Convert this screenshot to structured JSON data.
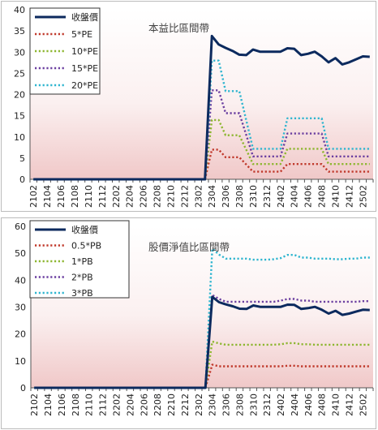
{
  "charts": [
    {
      "type": "line",
      "title": "本益比區間帶",
      "ylim": [
        0,
        40
      ],
      "yticks": [
        0,
        5,
        10,
        15,
        20,
        25,
        30,
        35,
        40
      ],
      "xticklabels": [
        "2102",
        "2104",
        "2106",
        "2108",
        "2110",
        "2112",
        "2202",
        "2204",
        "2206",
        "2208",
        "2210",
        "2212",
        "2302",
        "2304",
        "2306",
        "2308",
        "2310",
        "2312",
        "2402",
        "2404",
        "2406",
        "2408",
        "2410",
        "2412",
        "2502"
      ],
      "n_points": 50,
      "background": {
        "top": "#ffffff",
        "bottom": "#f0c8c8"
      },
      "series": [
        {
          "name": "收盤價",
          "color": "#0c2a5e",
          "style": "solid",
          "width": 3,
          "values": [
            0,
            0,
            0,
            0,
            0,
            0,
            0,
            0,
            0,
            0,
            0,
            0,
            0,
            0,
            0,
            0,
            0,
            0,
            0,
            0,
            0,
            0,
            0,
            0,
            0,
            0,
            33.8,
            31.8,
            31,
            30.3,
            29.4,
            29.3,
            30.6,
            30.1,
            30.1,
            30.1,
            30.1,
            30.9,
            30.8,
            29.3,
            29.6,
            30.1,
            29,
            27.6,
            28.6,
            27.1,
            27.6,
            28.3,
            29,
            28.9
          ]
        },
        {
          "name": "5*PE",
          "color": "#c0392b",
          "style": "dotted",
          "width": 2.4,
          "values": [
            0,
            0,
            0,
            0,
            0,
            0,
            0,
            0,
            0,
            0,
            0,
            0,
            0,
            0,
            0,
            0,
            0,
            0,
            0,
            0,
            0,
            0,
            0,
            0,
            0,
            0,
            7,
            7,
            5.2,
            5.2,
            5.2,
            3.5,
            1.8,
            1.8,
            1.8,
            1.8,
            1.8,
            3.6,
            3.6,
            3.6,
            3.6,
            3.6,
            3.6,
            1.8,
            1.8,
            1.8,
            1.8,
            1.8,
            1.8,
            1.8
          ]
        },
        {
          "name": "10*PE",
          "color": "#8db630",
          "style": "dotted",
          "width": 2.4,
          "values": [
            0,
            0,
            0,
            0,
            0,
            0,
            0,
            0,
            0,
            0,
            0,
            0,
            0,
            0,
            0,
            0,
            0,
            0,
            0,
            0,
            0,
            0,
            0,
            0,
            0,
            0,
            14,
            14,
            10.4,
            10.4,
            10.4,
            7,
            3.6,
            3.6,
            3.6,
            3.6,
            3.6,
            7.2,
            7.2,
            7.2,
            7.2,
            7.2,
            7.2,
            3.6,
            3.6,
            3.6,
            3.6,
            3.6,
            3.6,
            3.6
          ]
        },
        {
          "name": "15*PE",
          "color": "#6b3fa0",
          "style": "dotted",
          "width": 2.4,
          "values": [
            0,
            0,
            0,
            0,
            0,
            0,
            0,
            0,
            0,
            0,
            0,
            0,
            0,
            0,
            0,
            0,
            0,
            0,
            0,
            0,
            0,
            0,
            0,
            0,
            0,
            0,
            21,
            21,
            15.6,
            15.6,
            15.6,
            10.5,
            5.4,
            5.4,
            5.4,
            5.4,
            5.4,
            10.8,
            10.8,
            10.8,
            10.8,
            10.8,
            10.8,
            5.4,
            5.4,
            5.4,
            5.4,
            5.4,
            5.4,
            5.4
          ]
        },
        {
          "name": "20*PE",
          "color": "#2fb5cf",
          "style": "dotted",
          "width": 2.4,
          "values": [
            0,
            0,
            0,
            0,
            0,
            0,
            0,
            0,
            0,
            0,
            0,
            0,
            0,
            0,
            0,
            0,
            0,
            0,
            0,
            0,
            0,
            0,
            0,
            0,
            0,
            0,
            28,
            28,
            20.8,
            20.8,
            20.8,
            14,
            7.2,
            7.2,
            7.2,
            7.2,
            7.2,
            14.4,
            14.4,
            14.4,
            14.4,
            14.4,
            14.4,
            7.2,
            7.2,
            7.2,
            7.2,
            7.2,
            7.2,
            7.2
          ]
        }
      ]
    },
    {
      "type": "line",
      "title": "股價淨值比區間帶",
      "ylim": [
        0,
        60
      ],
      "yticks": [
        0,
        10,
        20,
        30,
        40,
        50,
        60
      ],
      "xticklabels": [
        "2102",
        "2104",
        "2106",
        "2108",
        "2110",
        "2112",
        "2202",
        "2204",
        "2206",
        "2208",
        "2210",
        "2212",
        "2302",
        "2304",
        "2306",
        "2308",
        "2310",
        "2312",
        "2402",
        "2404",
        "2406",
        "2408",
        "2410",
        "2412",
        "2502"
      ],
      "n_points": 50,
      "background": {
        "top": "#ffffff",
        "bottom": "#f0c8c8"
      },
      "series": [
        {
          "name": "收盤價",
          "color": "#0c2a5e",
          "style": "solid",
          "width": 3,
          "values": [
            0,
            0,
            0,
            0,
            0,
            0,
            0,
            0,
            0,
            0,
            0,
            0,
            0,
            0,
            0,
            0,
            0,
            0,
            0,
            0,
            0,
            0,
            0,
            0,
            0,
            0,
            33.8,
            31.8,
            31,
            30.3,
            29.4,
            29.3,
            30.6,
            30.1,
            30.1,
            30.1,
            30.1,
            30.9,
            30.8,
            29.3,
            29.6,
            30.1,
            29,
            27.6,
            28.6,
            27.1,
            27.6,
            28.3,
            29,
            28.9
          ]
        },
        {
          "name": "0.5*PB",
          "color": "#c0392b",
          "style": "dotted",
          "width": 2.4,
          "values": [
            0,
            0,
            0,
            0,
            0,
            0,
            0,
            0,
            0,
            0,
            0,
            0,
            0,
            0,
            0,
            0,
            0,
            0,
            0,
            0,
            0,
            0,
            0,
            0,
            0,
            0,
            8.6,
            8,
            8,
            8,
            8,
            8,
            8,
            8,
            8,
            8,
            8,
            8.2,
            8.2,
            8,
            8,
            8,
            8,
            8,
            8,
            8,
            8,
            8,
            8,
            8
          ]
        },
        {
          "name": "1*PB",
          "color": "#8db630",
          "style": "dotted",
          "width": 2.4,
          "values": [
            0,
            0,
            0,
            0,
            0,
            0,
            0,
            0,
            0,
            0,
            0,
            0,
            0,
            0,
            0,
            0,
            0,
            0,
            0,
            0,
            0,
            0,
            0,
            0,
            0,
            0,
            17.2,
            16.5,
            16,
            16,
            16,
            16,
            16,
            16,
            16,
            16,
            16.2,
            16.6,
            16.6,
            16.2,
            16.2,
            16,
            16,
            16,
            16,
            16,
            16,
            16,
            16,
            16
          ]
        },
        {
          "name": "2*PB",
          "color": "#6b3fa0",
          "style": "dotted",
          "width": 2.4,
          "values": [
            0,
            0,
            0,
            0,
            0,
            0,
            0,
            0,
            0,
            0,
            0,
            0,
            0,
            0,
            0,
            0,
            0,
            0,
            0,
            0,
            0,
            0,
            0,
            0,
            0,
            0,
            34.5,
            33,
            32,
            32,
            32,
            32,
            32,
            32,
            32,
            32,
            32.4,
            33,
            33,
            32.4,
            32.4,
            32,
            32,
            32,
            32,
            32,
            32,
            32,
            32.2,
            32.2
          ]
        },
        {
          "name": "3*PB",
          "color": "#2fb5cf",
          "style": "dotted",
          "width": 2.4,
          "values": [
            0,
            0,
            0,
            0,
            0,
            0,
            0,
            0,
            0,
            0,
            0,
            0,
            0,
            0,
            0,
            0,
            0,
            0,
            0,
            0,
            0,
            0,
            0,
            0,
            0,
            0,
            51.7,
            49.5,
            48,
            48,
            48,
            48,
            47.6,
            47.6,
            47.6,
            47.8,
            48.2,
            49.4,
            49.4,
            48.4,
            48.4,
            48,
            48,
            48,
            47.8,
            47.8,
            48,
            48,
            48.4,
            48.4
          ]
        }
      ]
    }
  ]
}
